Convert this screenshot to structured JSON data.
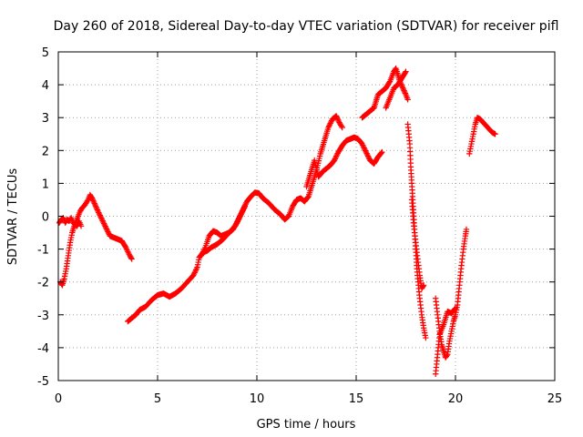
{
  "chart_data": {
    "type": "scatter",
    "title": "Day 260 of 2018, Sidereal Day-to-day VTEC variation (SDTVAR) for receiver pifl",
    "xlabel": "GPS time / hours",
    "ylabel": "SDTVAR / TECUs",
    "xlim": [
      0,
      25
    ],
    "ylim": [
      -5,
      5
    ],
    "xticks": [
      0,
      5,
      10,
      15,
      20,
      25
    ],
    "yticks": [
      -5,
      -4,
      -3,
      -2,
      -1,
      0,
      1,
      2,
      3,
      4,
      5
    ],
    "xtick_labels": [
      "0",
      "5",
      "10",
      "15",
      "20",
      "25"
    ],
    "ytick_labels": [
      "-5",
      "-4",
      "-3",
      "-2",
      "-1",
      "0",
      "1",
      "2",
      "3",
      "4",
      "5"
    ],
    "grid": true,
    "marker": "+",
    "color": "#ff0000",
    "series": [
      {
        "segments": [
          [
            [
              0.1,
              -2.0
            ],
            [
              0.2,
              -2.1
            ],
            [
              0.3,
              -1.9
            ],
            [
              0.4,
              -1.6
            ],
            [
              0.5,
              -1.2
            ],
            [
              0.6,
              -0.8
            ],
            [
              0.7,
              -0.5
            ],
            [
              0.8,
              -0.3
            ],
            [
              0.9,
              -0.15
            ],
            [
              1.0,
              0.0
            ],
            [
              1.1,
              0.15
            ],
            [
              1.2,
              0.25
            ],
            [
              1.35,
              0.35
            ],
            [
              1.5,
              0.5
            ],
            [
              1.6,
              0.65
            ],
            [
              1.7,
              0.55
            ],
            [
              1.85,
              0.35
            ],
            [
              2.0,
              0.15
            ],
            [
              2.2,
              -0.1
            ],
            [
              2.4,
              -0.35
            ],
            [
              2.6,
              -0.6
            ],
            [
              2.8,
              -0.65
            ],
            [
              3.0,
              -0.7
            ],
            [
              3.2,
              -0.75
            ],
            [
              3.4,
              -0.95
            ],
            [
              3.6,
              -1.2
            ],
            [
              3.7,
              -1.3
            ]
          ],
          [
            [
              0.05,
              -0.2
            ],
            [
              0.15,
              -0.1
            ],
            [
              0.25,
              -0.05
            ],
            [
              0.35,
              -0.2
            ],
            [
              0.45,
              -0.1
            ],
            [
              0.55,
              -0.15
            ],
            [
              0.65,
              -0.05
            ],
            [
              0.75,
              -0.2
            ],
            [
              0.85,
              -0.25
            ],
            [
              0.95,
              -0.3
            ],
            [
              1.05,
              -0.15
            ],
            [
              1.15,
              -0.3
            ]
          ],
          [
            [
              3.5,
              -3.2
            ],
            [
              3.7,
              -3.1
            ],
            [
              3.9,
              -3.0
            ],
            [
              4.1,
              -2.85
            ],
            [
              4.4,
              -2.75
            ],
            [
              4.7,
              -2.55
            ],
            [
              5.0,
              -2.4
            ],
            [
              5.3,
              -2.35
            ],
            [
              5.6,
              -2.45
            ],
            [
              5.9,
              -2.35
            ],
            [
              6.2,
              -2.2
            ],
            [
              6.5,
              -2.0
            ],
            [
              6.8,
              -1.8
            ],
            [
              7.0,
              -1.55
            ],
            [
              7.1,
              -1.25
            ],
            [
              7.3,
              -1.1
            ],
            [
              7.5,
              -1.05
            ],
            [
              7.7,
              -0.95
            ],
            [
              8.0,
              -0.85
            ],
            [
              8.3,
              -0.7
            ],
            [
              8.6,
              -0.5
            ],
            [
              8.9,
              -0.3
            ],
            [
              9.1,
              -0.05
            ],
            [
              9.3,
              0.2
            ],
            [
              9.5,
              0.45
            ],
            [
              9.7,
              0.6
            ],
            [
              9.9,
              0.72
            ],
            [
              10.1,
              0.7
            ],
            [
              10.3,
              0.55
            ],
            [
              10.6,
              0.4
            ],
            [
              10.9,
              0.2
            ],
            [
              11.2,
              0.05
            ],
            [
              11.4,
              -0.1
            ],
            [
              11.6,
              0.0
            ],
            [
              11.8,
              0.3
            ],
            [
              12.0,
              0.5
            ],
            [
              12.2,
              0.55
            ],
            [
              12.4,
              0.45
            ],
            [
              12.6,
              0.6
            ],
            [
              12.8,
              1.0
            ],
            [
              13.0,
              1.4
            ],
            [
              13.2,
              1.9
            ],
            [
              13.4,
              2.3
            ],
            [
              13.6,
              2.7
            ],
            [
              13.8,
              2.95
            ],
            [
              14.0,
              3.05
            ],
            [
              14.15,
              2.85
            ],
            [
              14.3,
              2.7
            ]
          ],
          [
            [
              7.2,
              -1.2
            ],
            [
              7.4,
              -0.95
            ],
            [
              7.6,
              -0.6
            ],
            [
              7.8,
              -0.45
            ],
            [
              8.0,
              -0.5
            ],
            [
              8.2,
              -0.6
            ],
            [
              8.4,
              -0.55
            ],
            [
              8.6,
              -0.5
            ],
            [
              8.8,
              -0.4
            ],
            [
              9.0,
              -0.2
            ],
            [
              9.2,
              0.05
            ],
            [
              9.4,
              0.3
            ]
          ],
          [
            [
              12.5,
              0.9
            ],
            [
              12.7,
              1.3
            ],
            [
              12.9,
              1.7
            ],
            [
              13.1,
              1.2
            ],
            [
              13.3,
              1.35
            ],
            [
              13.5,
              1.45
            ],
            [
              13.7,
              1.55
            ],
            [
              13.9,
              1.7
            ],
            [
              14.1,
              1.95
            ],
            [
              14.3,
              2.15
            ],
            [
              14.5,
              2.3
            ],
            [
              14.7,
              2.35
            ],
            [
              14.9,
              2.4
            ],
            [
              15.1,
              2.35
            ],
            [
              15.3,
              2.2
            ],
            [
              15.5,
              1.95
            ],
            [
              15.7,
              1.7
            ],
            [
              15.9,
              1.6
            ],
            [
              16.1,
              1.8
            ],
            [
              16.3,
              1.95
            ]
          ],
          [
            [
              15.3,
              3.0
            ],
            [
              15.5,
              3.1
            ],
            [
              15.7,
              3.2
            ],
            [
              15.9,
              3.3
            ],
            [
              16.0,
              3.5
            ],
            [
              16.1,
              3.7
            ],
            [
              16.3,
              3.8
            ],
            [
              16.5,
              3.9
            ],
            [
              16.7,
              4.1
            ],
            [
              16.9,
              4.4
            ],
            [
              17.0,
              4.5
            ],
            [
              17.1,
              4.3
            ],
            [
              17.2,
              4.1
            ],
            [
              17.35,
              3.9
            ],
            [
              17.5,
              3.7
            ],
            [
              17.6,
              3.55
            ]
          ],
          [
            [
              16.5,
              3.3
            ],
            [
              16.7,
              3.6
            ],
            [
              16.9,
              3.9
            ],
            [
              17.1,
              4.0
            ],
            [
              17.3,
              4.2
            ],
            [
              17.5,
              4.4
            ]
          ],
          [
            [
              17.6,
              2.8
            ],
            [
              17.7,
              2.2
            ],
            [
              17.75,
              1.5
            ],
            [
              17.8,
              1.0
            ],
            [
              17.85,
              0.5
            ],
            [
              17.9,
              0.0
            ],
            [
              17.95,
              -0.5
            ],
            [
              18.0,
              -1.0
            ],
            [
              18.05,
              -1.5
            ],
            [
              18.1,
              -1.9
            ],
            [
              18.2,
              -2.5
            ],
            [
              18.3,
              -3.0
            ],
            [
              18.4,
              -3.4
            ],
            [
              18.5,
              -3.7
            ]
          ],
          [
            [
              17.8,
              0.5
            ],
            [
              17.9,
              -0.3
            ],
            [
              18.0,
              -0.8
            ],
            [
              18.1,
              -1.3
            ],
            [
              18.2,
              -1.8
            ],
            [
              18.3,
              -2.2
            ],
            [
              18.4,
              -2.1
            ]
          ],
          [
            [
              19.0,
              -2.5
            ],
            [
              19.1,
              -3.0
            ],
            [
              19.2,
              -3.5
            ],
            [
              19.3,
              -3.9
            ],
            [
              19.4,
              -4.1
            ],
            [
              19.5,
              -4.3
            ],
            [
              19.6,
              -4.2
            ],
            [
              19.7,
              -3.8
            ],
            [
              19.8,
              -3.5
            ],
            [
              19.9,
              -3.2
            ],
            [
              20.0,
              -3.0
            ],
            [
              20.1,
              -2.7
            ],
            [
              20.2,
              -2.1
            ],
            [
              20.3,
              -1.5
            ],
            [
              20.4,
              -1.0
            ],
            [
              20.5,
              -0.6
            ],
            [
              20.55,
              -0.4
            ]
          ],
          [
            [
              19.0,
              -4.8
            ],
            [
              19.2,
              -3.6
            ],
            [
              19.4,
              -3.3
            ],
            [
              19.6,
              -2.9
            ],
            [
              19.8,
              -2.95
            ],
            [
              20.0,
              -2.8
            ]
          ],
          [
            [
              20.7,
              1.9
            ],
            [
              20.8,
              2.2
            ],
            [
              20.9,
              2.5
            ],
            [
              21.0,
              2.8
            ],
            [
              21.1,
              3.0
            ],
            [
              21.25,
              2.95
            ],
            [
              21.4,
              2.85
            ],
            [
              21.55,
              2.75
            ],
            [
              21.7,
              2.65
            ],
            [
              21.85,
              2.55
            ],
            [
              22.0,
              2.5
            ]
          ]
        ]
      }
    ]
  }
}
